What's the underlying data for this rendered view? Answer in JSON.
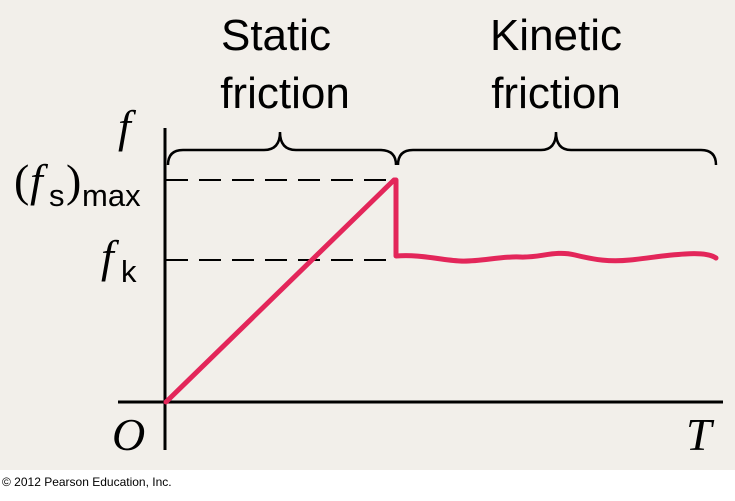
{
  "regions": {
    "static_line1": "Static",
    "static_line2": "friction",
    "kinetic_line1": "Kinetic",
    "kinetic_line2": "friction"
  },
  "axes": {
    "y_label": "f",
    "x_label": "T",
    "origin_label": "O"
  },
  "levels": {
    "fs_max_open": "(",
    "fs_max_f": "f",
    "fs_max_sub": "s",
    "fs_max_close": ")",
    "fs_max_subscript": "max",
    "fk_f": "f",
    "fk_sub": "k"
  },
  "copyright": "© 2012 Pearson Education, Inc.",
  "colors": {
    "background": "#f2efea",
    "curve": "#e3265a",
    "axes": "#000000"
  }
}
